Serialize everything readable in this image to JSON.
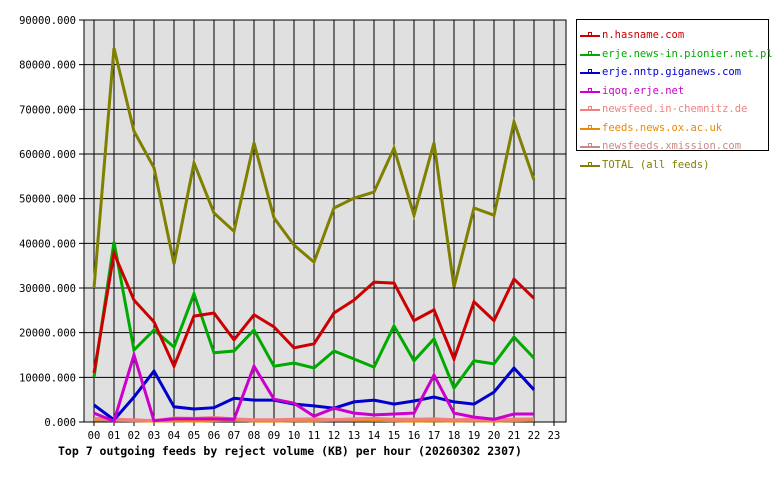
{
  "chart_data": {
    "type": "line",
    "title": "Top 7 outgoing feeds by reject volume (KB) per hour (20260302 2307)",
    "xlabel": "",
    "ylabel": "",
    "ylim": [
      0,
      90000
    ],
    "grid": true,
    "legend_position": "right",
    "y_ticks": [
      "0.000",
      "10000.000",
      "20000.000",
      "30000.000",
      "40000.000",
      "50000.000",
      "60000.000",
      "70000.000",
      "80000.000",
      "90000.000"
    ],
    "x": [
      "00",
      "01",
      "02",
      "03",
      "04",
      "05",
      "06",
      "07",
      "08",
      "09",
      "10",
      "11",
      "12",
      "13",
      "14",
      "15",
      "16",
      "17",
      "18",
      "19",
      "20",
      "21",
      "22",
      "23"
    ],
    "series": [
      {
        "name": "n.hasname.com",
        "color": "#cc0000",
        "values": [
          11000,
          37800,
          27300,
          22400,
          12500,
          23700,
          24400,
          18400,
          24000,
          21300,
          16600,
          17500,
          24400,
          27300,
          31300,
          31100,
          22700,
          25100,
          14100,
          26900,
          22700,
          32000,
          27700
        ]
      },
      {
        "name": "erje.news-in.pionier.net.pl",
        "color": "#00aa00",
        "values": [
          10000,
          40300,
          16100,
          20600,
          16800,
          28700,
          15500,
          15900,
          20600,
          12500,
          13200,
          12100,
          15900,
          14100,
          12300,
          21500,
          13700,
          18600,
          7600,
          13700,
          13000,
          19000,
          14300
        ]
      },
      {
        "name": "erje.nntp.giganews.com",
        "color": "#0000cc",
        "values": [
          3800,
          500,
          5600,
          11400,
          3400,
          2900,
          3200,
          5300,
          4900,
          4900,
          4000,
          3600,
          3100,
          4500,
          4900,
          4000,
          4700,
          5600,
          4500,
          4000,
          6700,
          12100,
          7200
        ]
      },
      {
        "name": "iqoq.erje.net",
        "color": "#cc00cc",
        "values": [
          2000,
          200,
          15000,
          300,
          700,
          700,
          700,
          600,
          12500,
          5100,
          4200,
          1300,
          3100,
          2000,
          1600,
          1800,
          2000,
          10500,
          2000,
          1100,
          600,
          1800,
          1800
        ]
      },
      {
        "name": "newsfeed.in-chemnitz.de",
        "color": "#f08080",
        "values": [
          800,
          600,
          500,
          300,
          900,
          800,
          1000,
          700,
          500,
          500,
          600,
          700,
          500,
          700,
          800,
          600,
          600,
          700,
          500,
          600,
          500,
          600,
          700
        ]
      },
      {
        "name": "feeds.news.ox.ac.uk",
        "color": "#ee8800",
        "values": [
          600,
          700,
          300,
          200,
          300,
          200,
          300,
          600,
          200,
          200,
          300,
          300,
          500,
          600,
          400,
          300,
          200,
          300,
          200,
          300,
          200,
          300,
          500
        ]
      },
      {
        "name": "newsfeeds.xmission.com",
        "color": "#cc8888",
        "values": [
          500,
          400,
          300,
          400,
          300,
          500,
          400,
          400,
          300,
          300,
          400,
          300,
          400,
          400,
          400,
          500,
          300,
          500,
          400,
          300,
          300,
          400,
          400
        ]
      },
      {
        "name": "TOTAL (all feeds)",
        "color": "#808000",
        "values": [
          30000,
          83700,
          65100,
          56900,
          35400,
          58000,
          46800,
          42700,
          62500,
          45700,
          39600,
          35800,
          47900,
          50100,
          51500,
          61300,
          46300,
          62500,
          30200,
          47900,
          46300,
          67200,
          54200
        ]
      }
    ]
  },
  "chart": {
    "title": "Top 7 outgoing feeds by reject volume (KB) per hour (20260302 2307)"
  },
  "legend": {
    "items": [
      {
        "label": "n.hasname.com",
        "color": "#cc0000"
      },
      {
        "label": "erje.news-in.pionier.net.pl",
        "color": "#00aa00"
      },
      {
        "label": "erje.nntp.giganews.com",
        "color": "#0000cc"
      },
      {
        "label": "iqoq.erje.net",
        "color": "#cc00cc"
      },
      {
        "label": "newsfeed.in-chemnitz.de",
        "color": "#f08080"
      },
      {
        "label": "feeds.news.ox.ac.uk",
        "color": "#ee8800"
      },
      {
        "label": "newsfeeds.xmission.com",
        "color": "#cc8888"
      },
      {
        "label": "TOTAL (all feeds)",
        "color": "#808000"
      }
    ]
  },
  "colors": {
    "plot_bg": "#e0e0e0",
    "grid": "#000000"
  }
}
